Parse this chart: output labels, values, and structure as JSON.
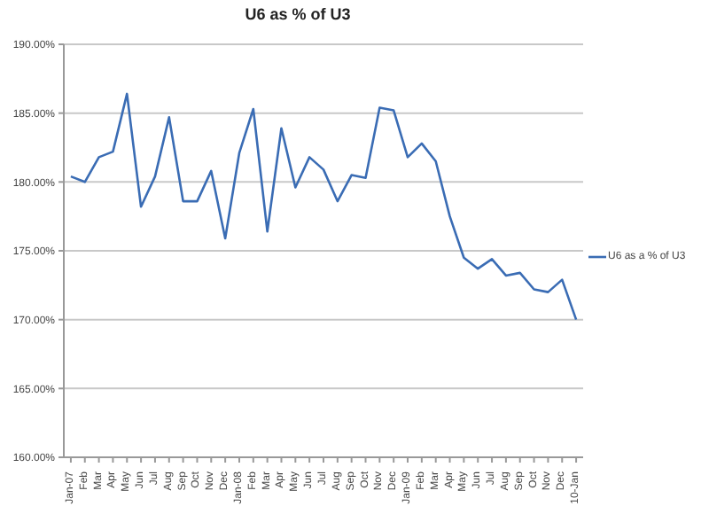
{
  "chart_data": {
    "type": "line",
    "title": "U6 as % of U3",
    "categories": [
      "Jan-07",
      "Feb",
      "Mar",
      "Apr",
      "May",
      "Jun",
      "Jul",
      "Aug",
      "Sep",
      "Oct",
      "Nov",
      "Dec",
      "Jan-08",
      "Feb",
      "Mar",
      "Apr",
      "May",
      "Jun",
      "Jul",
      "Aug",
      "Sep",
      "Oct",
      "Nov",
      "Dec",
      "Jan-09",
      "Feb",
      "Mar",
      "Apr",
      "May",
      "Jun",
      "Jul",
      "Aug",
      "Sep",
      "Oct",
      "Nov",
      "Dec",
      "10-Jan"
    ],
    "series": [
      {
        "name": "U6 as a % of U3",
        "color": "#3a6cb4",
        "values": [
          180.4,
          180.0,
          181.8,
          182.2,
          186.4,
          178.2,
          180.4,
          184.7,
          178.6,
          178.6,
          180.8,
          175.9,
          182.1,
          185.3,
          176.4,
          183.9,
          179.6,
          181.8,
          180.9,
          178.6,
          180.5,
          180.3,
          185.4,
          185.2,
          181.8,
          182.8,
          181.5,
          177.5,
          174.5,
          173.7,
          174.4,
          173.2,
          173.4,
          172.2,
          172.0,
          172.9,
          170.0
        ]
      }
    ],
    "ylim": [
      160,
      190
    ],
    "yticks": [
      {
        "value": 160,
        "label": "160.00%"
      },
      {
        "value": 165,
        "label": "165.00%"
      },
      {
        "value": 170,
        "label": "170.00%"
      },
      {
        "value": 175,
        "label": "175.00%"
      },
      {
        "value": 180,
        "label": "180.00%"
      },
      {
        "value": 185,
        "label": "185.00%"
      },
      {
        "value": 190,
        "label": "190.00%"
      }
    ],
    "grid": "y",
    "legend": "right",
    "marker": "none",
    "line_style": "solid"
  }
}
